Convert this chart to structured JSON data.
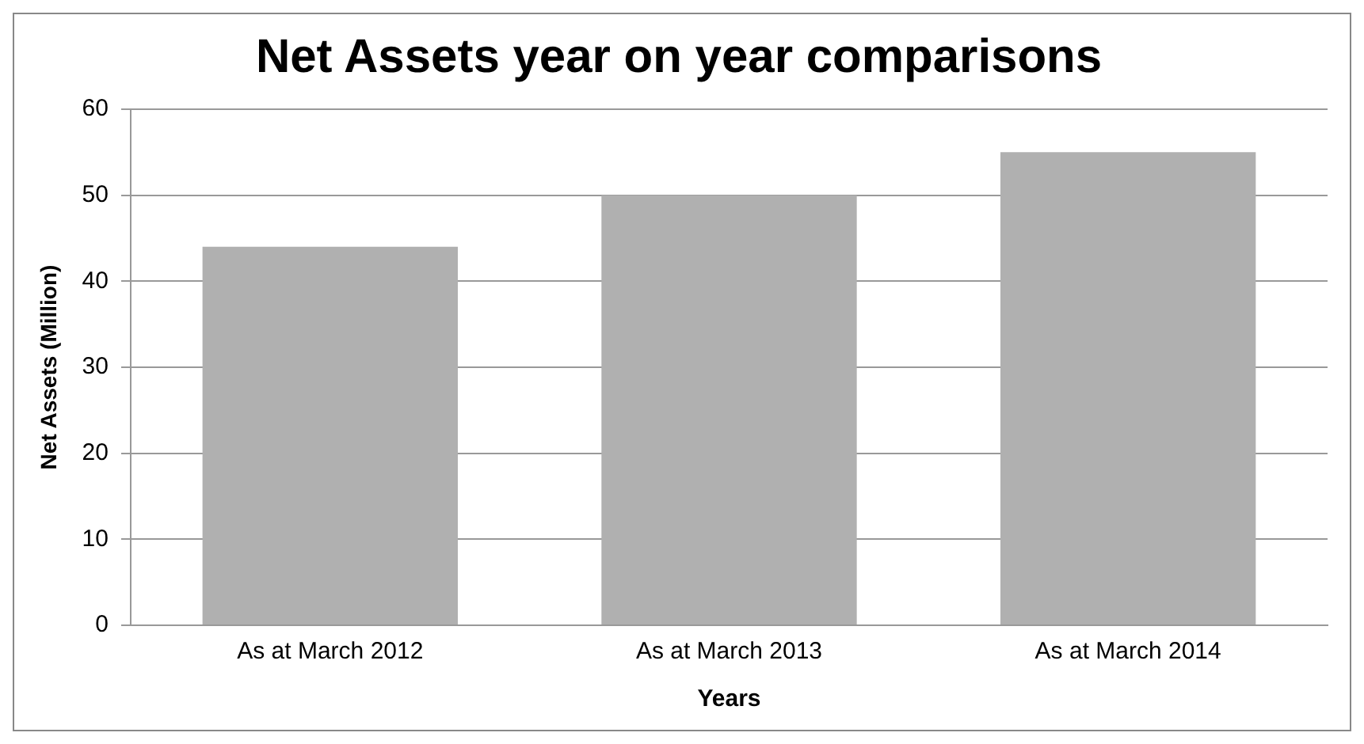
{
  "chart_data": {
    "type": "bar",
    "title": "Net Assets year on year comparisons",
    "xlabel": "Years",
    "ylabel": "Net Assets (Million)",
    "categories": [
      "As at March 2012",
      "As at March 2013",
      "As at March 2014"
    ],
    "values": [
      44,
      50,
      55
    ],
    "color": "#b0b0b0",
    "ylim": [
      0,
      60
    ],
    "yticks": [
      0,
      10,
      20,
      30,
      40,
      50,
      60
    ],
    "grid": "y",
    "legend": false
  }
}
